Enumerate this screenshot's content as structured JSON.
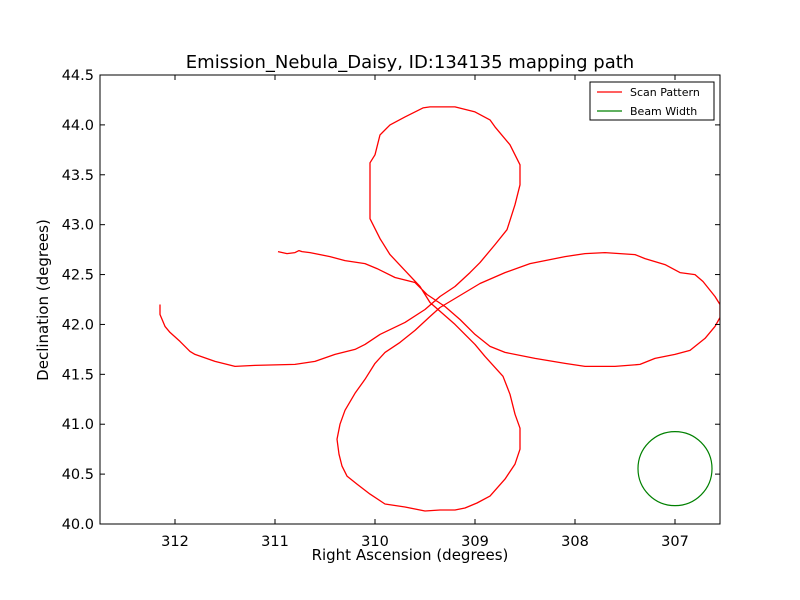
{
  "chart_data": {
    "type": "line",
    "title": "Emission_Nebula_Daisy, ID:134135 mapping path",
    "xlabel": "Right Ascension (degrees)",
    "ylabel": "Declination (degrees)",
    "xlim": [
      312.75,
      306.55
    ],
    "ylim": [
      40.0,
      44.5
    ],
    "x_ticks": [
      312,
      311,
      310,
      309,
      308,
      307
    ],
    "x_tick_labels": [
      "312",
      "311",
      "310",
      "309",
      "308",
      "307"
    ],
    "y_ticks": [
      40.0,
      40.5,
      41.0,
      41.5,
      42.0,
      42.5,
      43.0,
      43.5,
      44.0,
      44.5
    ],
    "y_tick_labels": [
      "40.0",
      "40.5",
      "41.0",
      "41.5",
      "42.0",
      "42.5",
      "43.0",
      "43.5",
      "44.0",
      "44.5"
    ],
    "grid": false,
    "legend": "top-right",
    "series": [
      {
        "name": "Scan Pattern",
        "color": "#ff0000",
        "points": [
          [
            310.97,
            42.73
          ],
          [
            310.88,
            42.71
          ],
          [
            310.8,
            42.72
          ],
          [
            310.76,
            42.74
          ],
          [
            310.73,
            42.73
          ],
          [
            310.65,
            42.72
          ],
          [
            310.45,
            42.68
          ],
          [
            310.3,
            42.64
          ],
          [
            310.1,
            42.61
          ],
          [
            309.98,
            42.56
          ],
          [
            309.8,
            42.47
          ],
          [
            309.6,
            42.42
          ],
          [
            309.48,
            42.3
          ],
          [
            309.3,
            42.18
          ],
          [
            309.15,
            42.05
          ],
          [
            309.0,
            41.9
          ],
          [
            308.85,
            41.78
          ],
          [
            308.7,
            41.72
          ],
          [
            308.4,
            41.66
          ],
          [
            308.1,
            41.61
          ],
          [
            307.9,
            41.58
          ],
          [
            307.6,
            41.58
          ],
          [
            307.35,
            41.6
          ],
          [
            307.2,
            41.66
          ],
          [
            307.0,
            41.7
          ],
          [
            306.85,
            41.74
          ],
          [
            306.7,
            41.86
          ],
          [
            306.6,
            41.98
          ],
          [
            306.55,
            42.07
          ],
          [
            306.55,
            42.2
          ],
          [
            306.6,
            42.28
          ],
          [
            306.72,
            42.43
          ],
          [
            306.8,
            42.5
          ],
          [
            306.95,
            42.52
          ],
          [
            307.1,
            42.6
          ],
          [
            307.3,
            42.66
          ],
          [
            307.4,
            42.7
          ],
          [
            307.7,
            42.72
          ],
          [
            307.9,
            42.71
          ],
          [
            308.1,
            42.68
          ],
          [
            308.3,
            42.64
          ],
          [
            308.45,
            42.61
          ],
          [
            308.7,
            42.52
          ],
          [
            308.95,
            42.41
          ],
          [
            309.05,
            42.35
          ],
          [
            309.2,
            42.26
          ],
          [
            309.35,
            42.17
          ],
          [
            309.45,
            42.08
          ],
          [
            309.6,
            41.94
          ],
          [
            309.75,
            41.82
          ],
          [
            309.9,
            41.72
          ],
          [
            310.0,
            41.61
          ],
          [
            310.1,
            41.45
          ],
          [
            310.2,
            41.31
          ],
          [
            310.3,
            41.14
          ],
          [
            310.35,
            41.0
          ],
          [
            310.38,
            40.85
          ],
          [
            310.36,
            40.7
          ],
          [
            310.33,
            40.58
          ],
          [
            310.28,
            40.48
          ],
          [
            310.18,
            40.4
          ],
          [
            310.05,
            40.3
          ],
          [
            309.9,
            40.2
          ],
          [
            309.7,
            40.17
          ],
          [
            309.5,
            40.13
          ],
          [
            309.35,
            40.14
          ],
          [
            309.2,
            40.14
          ],
          [
            309.1,
            40.16
          ],
          [
            308.98,
            40.21
          ],
          [
            308.85,
            40.28
          ],
          [
            308.7,
            40.45
          ],
          [
            308.6,
            40.6
          ],
          [
            308.55,
            40.75
          ],
          [
            308.55,
            40.96
          ],
          [
            308.6,
            41.1
          ],
          [
            308.65,
            41.3
          ],
          [
            308.72,
            41.48
          ],
          [
            308.9,
            41.68
          ],
          [
            309.0,
            41.8
          ],
          [
            309.2,
            42.0
          ],
          [
            309.45,
            42.22
          ],
          [
            309.55,
            42.38
          ],
          [
            309.7,
            42.54
          ],
          [
            309.85,
            42.7
          ],
          [
            309.95,
            42.86
          ],
          [
            310.05,
            43.06
          ],
          [
            310.05,
            43.3
          ],
          [
            310.05,
            43.62
          ],
          [
            310.0,
            43.7
          ],
          [
            309.95,
            43.9
          ],
          [
            309.85,
            44.0
          ],
          [
            309.7,
            44.08
          ],
          [
            309.52,
            44.17
          ],
          [
            309.45,
            44.18
          ],
          [
            309.2,
            44.18
          ],
          [
            309.0,
            44.13
          ],
          [
            308.85,
            44.05
          ],
          [
            308.8,
            43.98
          ],
          [
            308.65,
            43.8
          ],
          [
            308.55,
            43.6
          ],
          [
            308.55,
            43.4
          ],
          [
            308.6,
            43.2
          ],
          [
            308.68,
            42.95
          ],
          [
            308.8,
            42.8
          ],
          [
            308.95,
            42.62
          ],
          [
            309.05,
            42.52
          ],
          [
            309.2,
            42.38
          ],
          [
            309.35,
            42.28
          ],
          [
            309.5,
            42.15
          ],
          [
            309.7,
            42.02
          ],
          [
            309.95,
            41.9
          ],
          [
            310.1,
            41.8
          ],
          [
            310.2,
            41.75
          ],
          [
            310.4,
            41.7
          ],
          [
            310.6,
            41.63
          ],
          [
            310.8,
            41.6
          ],
          [
            311.2,
            41.59
          ],
          [
            311.4,
            41.58
          ],
          [
            311.6,
            41.63
          ],
          [
            311.8,
            41.7
          ],
          [
            311.85,
            41.73
          ],
          [
            311.95,
            41.83
          ],
          [
            312.05,
            41.92
          ],
          [
            312.1,
            41.98
          ],
          [
            312.15,
            42.1
          ],
          [
            312.15,
            42.2
          ]
        ]
      },
      {
        "name": "Beam Width",
        "color": "#008000",
        "center": [
          307.0,
          40.555
        ],
        "radius_deg": 0.37
      }
    ]
  }
}
